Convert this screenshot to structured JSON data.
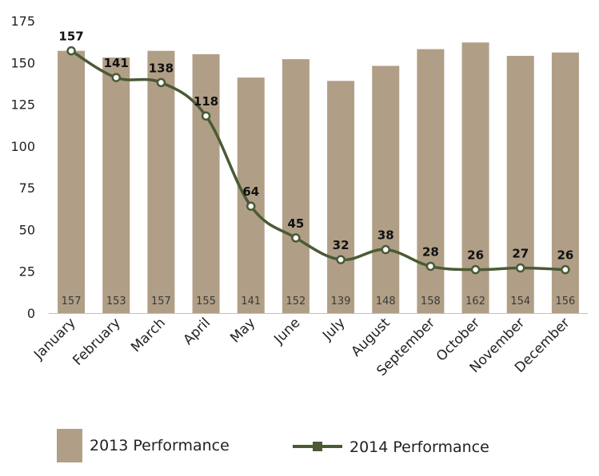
{
  "chart_data": {
    "type": "bar-line",
    "categories": [
      "January",
      "February",
      "March",
      "April",
      "May",
      "June",
      "July",
      "August",
      "September",
      "October",
      "November",
      "December"
    ],
    "series": [
      {
        "name": "2013 Performance",
        "type": "bar",
        "values": [
          157,
          153,
          157,
          155,
          141,
          152,
          139,
          148,
          158,
          162,
          154,
          156
        ]
      },
      {
        "name": "2014 Performance",
        "type": "line",
        "values": [
          157,
          141,
          138,
          118,
          64,
          45,
          32,
          38,
          28,
          26,
          27,
          26
        ]
      }
    ],
    "ylim": [
      0,
      175
    ],
    "yticks": [
      0,
      25,
      50,
      75,
      100,
      125,
      150,
      175
    ],
    "grid": false,
    "legend": "bottom"
  },
  "colors": {
    "bar": "#b09f86",
    "line": "#4a5a35",
    "marker_fill": "#ffffff",
    "axis": "#bfbfbf"
  }
}
